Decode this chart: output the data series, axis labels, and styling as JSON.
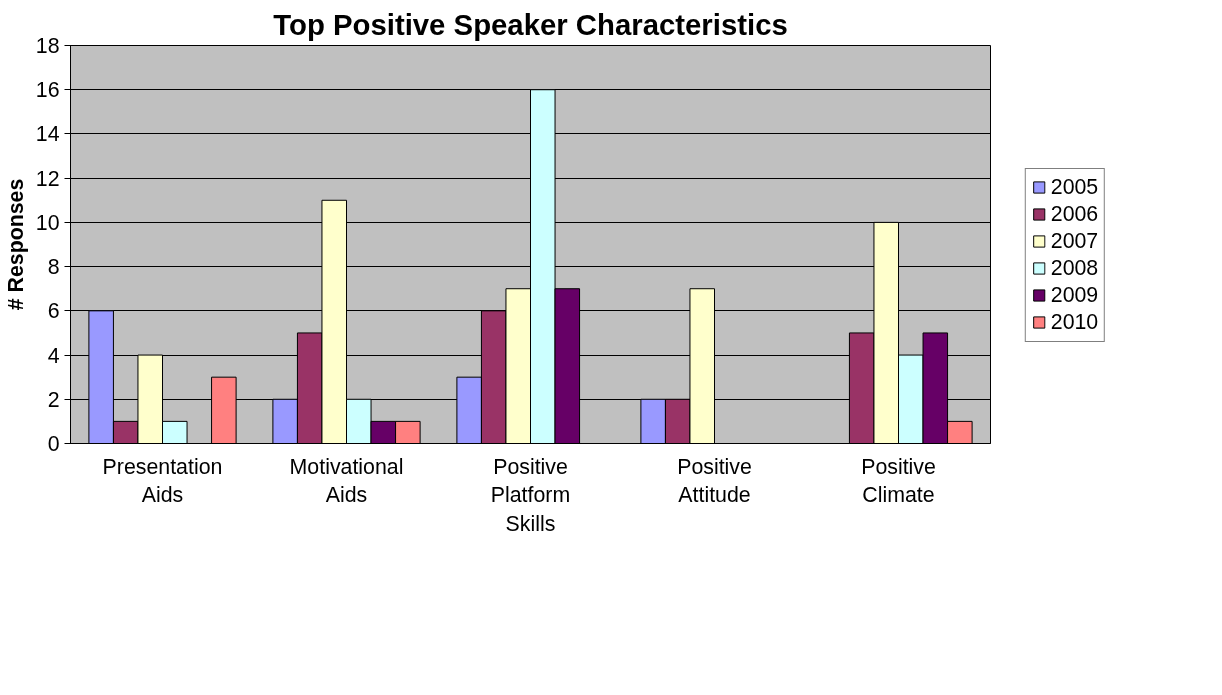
{
  "chart_data": {
    "type": "bar",
    "title": "Top Positive Speaker Characteristics",
    "ylabel": "# Responses",
    "categories": [
      "Presentation\nAids",
      "Motivational\nAids",
      "Positive\nPlatform\nSkills",
      "Positive\nAttitude",
      "Positive\nClimate"
    ],
    "series": [
      {
        "name": "2005",
        "color": "#9999ff",
        "values": [
          6,
          2,
          3,
          2,
          null
        ]
      },
      {
        "name": "2006",
        "color": "#993366",
        "values": [
          1,
          5,
          6,
          2,
          5
        ]
      },
      {
        "name": "2007",
        "color": "#ffffcc",
        "values": [
          4,
          11,
          7,
          7,
          10
        ]
      },
      {
        "name": "2008",
        "color": "#ccffff",
        "values": [
          1,
          2,
          16,
          null,
          4
        ]
      },
      {
        "name": "2009",
        "color": "#660066",
        "values": [
          null,
          1,
          7,
          null,
          5
        ]
      },
      {
        "name": "2010",
        "color": "#ff8080",
        "values": [
          3,
          1,
          null,
          null,
          1
        ]
      }
    ],
    "ylim": [
      0,
      18
    ],
    "yticks": [
      0,
      2,
      4,
      6,
      8,
      10,
      12,
      14,
      16,
      18
    ],
    "grid": "y",
    "legend": "right"
  }
}
